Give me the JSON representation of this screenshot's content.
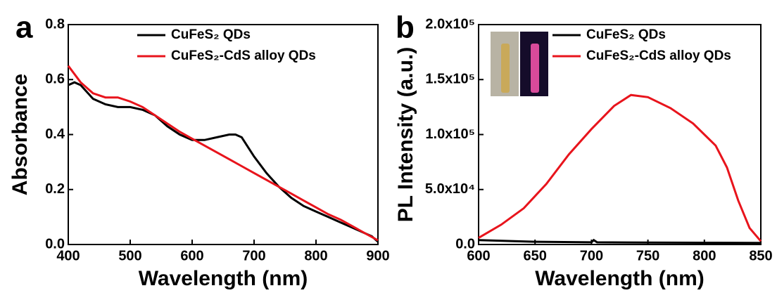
{
  "chart_data": [
    {
      "type": "line",
      "panel_label": "a",
      "xlabel": "Wavelength (nm)",
      "ylabel": "Absorbance",
      "xlim": [
        400,
        900
      ],
      "xticks": [
        400,
        500,
        600,
        700,
        800,
        900
      ],
      "ylim": [
        0,
        0.8
      ],
      "yticks": [
        {
          "value": 0,
          "label": "0.0"
        },
        0.2,
        0.4,
        0.6,
        0.8
      ],
      "legend": "top-right",
      "series": [
        {
          "name": "CuFeS₂ QDs",
          "color": "#000000",
          "x": [
            400,
            410,
            420,
            440,
            460,
            480,
            500,
            520,
            540,
            560,
            580,
            600,
            620,
            640,
            660,
            670,
            680,
            700,
            720,
            740,
            760,
            780,
            800,
            820,
            840,
            860,
            880,
            890,
            900
          ],
          "values": [
            0.58,
            0.59,
            0.58,
            0.53,
            0.51,
            0.5,
            0.5,
            0.49,
            0.47,
            0.43,
            0.4,
            0.38,
            0.38,
            0.39,
            0.4,
            0.4,
            0.39,
            0.32,
            0.26,
            0.21,
            0.17,
            0.14,
            0.12,
            0.1,
            0.08,
            0.06,
            0.04,
            0.03,
            0.01
          ]
        },
        {
          "name": "CuFeS₂-CdS alloy QDs",
          "color": "#e8141c",
          "x": [
            400,
            420,
            440,
            460,
            480,
            500,
            520,
            540,
            560,
            580,
            600,
            620,
            640,
            660,
            680,
            700,
            720,
            740,
            760,
            780,
            800,
            820,
            840,
            860,
            880,
            900
          ],
          "values": [
            0.65,
            0.59,
            0.55,
            0.535,
            0.535,
            0.52,
            0.5,
            0.47,
            0.44,
            0.41,
            0.385,
            0.36,
            0.335,
            0.31,
            0.285,
            0.26,
            0.235,
            0.21,
            0.185,
            0.16,
            0.135,
            0.11,
            0.09,
            0.065,
            0.04,
            0.015
          ]
        }
      ]
    },
    {
      "type": "line",
      "panel_label": "b",
      "xlabel": "Wavelength (nm)",
      "ylabel": "PL Intensity (a.u.)",
      "xlim": [
        600,
        850
      ],
      "xticks": [
        600,
        650,
        700,
        750,
        800,
        850
      ],
      "ylim": [
        0,
        200000
      ],
      "yticks": [
        {
          "value": 0,
          "label": "0.0"
        },
        {
          "value": 50000,
          "label": "5.0x10⁴"
        },
        {
          "value": 100000,
          "label": "1.0x10⁵"
        },
        {
          "value": 150000,
          "label": "1.5x10⁵"
        },
        {
          "value": 200000,
          "label": "2.0x10⁵"
        }
      ],
      "legend": "top-right",
      "series": [
        {
          "name": "CuFeS₂ QDs",
          "color": "#000000",
          "x": [
            600,
            650,
            700,
            702,
            705,
            750,
            800,
            850
          ],
          "values": [
            4000,
            2500,
            2000,
            4000,
            2000,
            1800,
            1600,
            1500
          ]
        },
        {
          "name": "CuFeS₂-CdS alloy QDs",
          "color": "#e8141c",
          "x": [
            600,
            620,
            640,
            660,
            680,
            700,
            720,
            735,
            750,
            770,
            790,
            800,
            810,
            820,
            830,
            840,
            850
          ],
          "values": [
            6000,
            18000,
            33000,
            55000,
            82000,
            105000,
            126000,
            136000,
            134000,
            124000,
            110000,
            100000,
            90000,
            70000,
            40000,
            15000,
            3000
          ]
        }
      ]
    }
  ]
}
